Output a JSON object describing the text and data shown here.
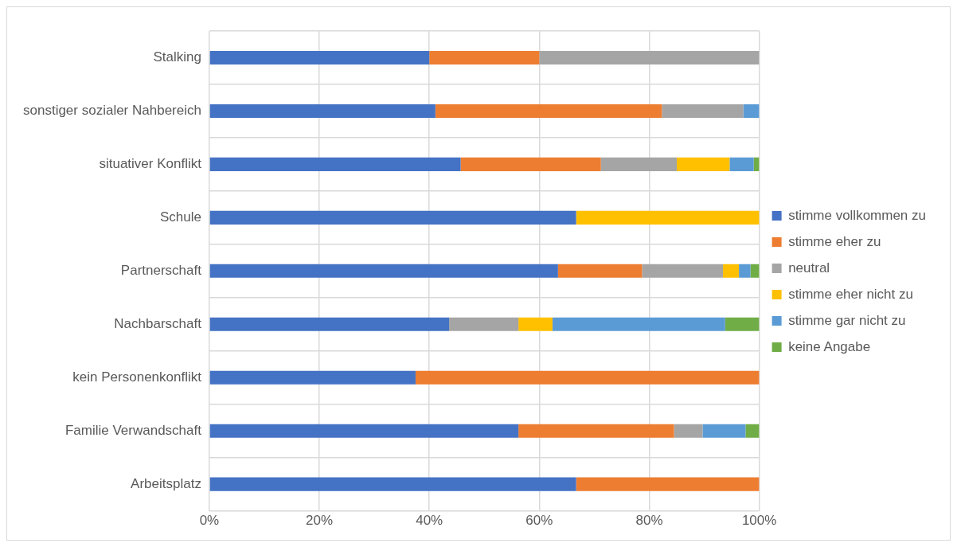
{
  "chart_data": {
    "type": "bar",
    "orientation": "horizontal",
    "stacked": true,
    "categories": [
      "Stalking",
      "sonstiger sozialer Nahbereich",
      "situativer Konflikt",
      "Schule",
      "Partnerschaft",
      "Nachbarschaft",
      "kein Personenkonflikt",
      "Familie Verwandschaft",
      "Arbeitsplatz"
    ],
    "series": [
      {
        "name": "stimme vollkommen zu",
        "color": "#4472c4",
        "values": [
          40,
          41.1,
          45.7,
          66.7,
          63.4,
          43.6,
          37.5,
          56.2,
          66.7
        ]
      },
      {
        "name": "stimme eher zu",
        "color": "#ed7d31",
        "values": [
          20,
          41.2,
          25.5,
          0,
          15.3,
          0,
          62.5,
          28.3,
          33.3
        ]
      },
      {
        "name": "neutral",
        "color": "#a5a5a5",
        "values": [
          40,
          14.8,
          13.8,
          0,
          14.7,
          12.6,
          0,
          5.2,
          0
        ]
      },
      {
        "name": "stimme eher nicht zu",
        "color": "#ffc000",
        "values": [
          0,
          0,
          9.6,
          33.3,
          2.9,
          6.2,
          0,
          0,
          0
        ]
      },
      {
        "name": "stimme gar nicht zu",
        "color": "#5b9bd5",
        "values": [
          0,
          2.9,
          4.4,
          0,
          2.1,
          31.4,
          0,
          7.8,
          0
        ]
      },
      {
        "name": "keine Angabe",
        "color": "#70ad47",
        "values": [
          0,
          0,
          1.0,
          0,
          1.6,
          6.2,
          0,
          2.5,
          0
        ]
      }
    ],
    "xlim": [
      0,
      100
    ],
    "xticks": [
      {
        "value": 0,
        "label": "0%"
      },
      {
        "value": 20,
        "label": "20%"
      },
      {
        "value": 40,
        "label": "40%"
      },
      {
        "value": 60,
        "label": "60%"
      },
      {
        "value": 80,
        "label": "80%"
      },
      {
        "value": 100,
        "label": "100%"
      }
    ],
    "grid": true,
    "legend": "right"
  }
}
